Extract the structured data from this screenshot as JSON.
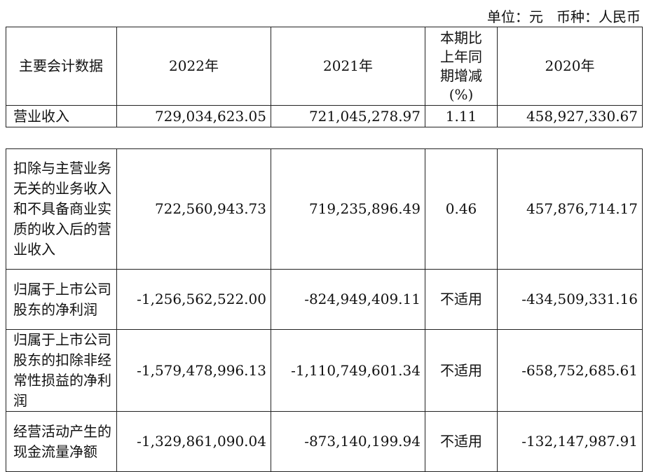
{
  "unit_note": "单位：元   币种：人民币",
  "header": {
    "col0": "主要会计数据",
    "col1": "2022年",
    "col2": "2021年",
    "col3": "本期比上年同期增减(%)",
    "col4": "2020年"
  },
  "rows": [
    {
      "label": "营业收入",
      "y2022": "729,034,623.05",
      "y2021": "721,045,278.97",
      "change": "1.11",
      "y2020": "458,927,330.67"
    },
    {
      "label": "扣除与主营业务无关的业务收入和不具备商业实质的收入后的营业收入",
      "y2022": "722,560,943.73",
      "y2021": "719,235,896.49",
      "change": "0.46",
      "y2020": "457,876,714.17"
    },
    {
      "label": "归属于上市公司股东的净利润",
      "y2022": "-1,256,562,522.00",
      "y2021": "-824,949,409.11",
      "change": "不适用",
      "y2020": "-434,509,331.16"
    },
    {
      "label": "归属于上市公司股东的扣除非经常性损益的净利润",
      "y2022": "-1,579,478,996.13",
      "y2021": "-1,110,749,601.34",
      "change": "不适用",
      "y2020": "-658,752,685.61"
    },
    {
      "label": "经营活动产生的现金流量净额",
      "y2022": "-1,329,861,090.04",
      "y2021": "-873,140,199.94",
      "change": "不适用",
      "y2020": "-132,147,987.91"
    }
  ]
}
